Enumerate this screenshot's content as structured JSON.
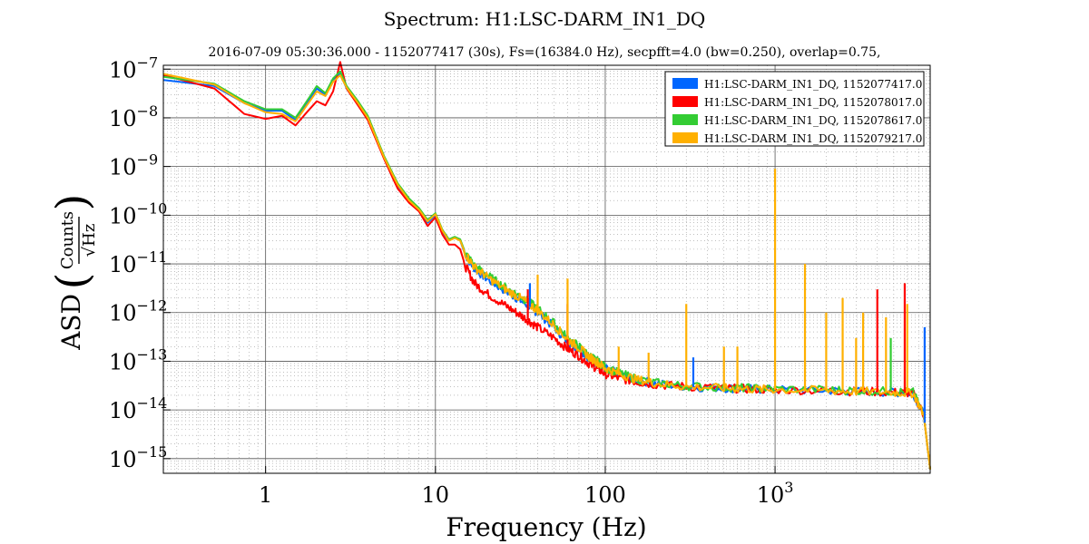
{
  "title": "Spectrum: H1:LSC-DARM_IN1_DQ",
  "subtitle": "2016-07-09 05:30:36.000 - 1152077417 (30s), Fs=(16384.0 Hz), secpfft=4.0 (bw=0.250), overlap=0.75,",
  "chart_data": {
    "type": "line",
    "title": "Spectrum: H1:LSC-DARM_IN1_DQ",
    "xlabel": "Frequency (Hz)",
    "ylabel": "ASD (Counts/√Hz)",
    "ylabel_parts": {
      "prefix": "ASD",
      "numerator": "Counts",
      "denominator": "√Hz"
    },
    "xscale": "log",
    "yscale": "log",
    "xlim": [
      0.25,
      8192
    ],
    "ylim": [
      5e-16,
      1.2e-07
    ],
    "grid": true,
    "legend_position": "top-right",
    "x_ticks": [
      {
        "value": 1,
        "base": "1",
        "exp": ""
      },
      {
        "value": 10,
        "base": "10",
        "exp": ""
      },
      {
        "value": 100,
        "base": "100",
        "exp": ""
      },
      {
        "value": 1000,
        "base": "10",
        "exp": "3"
      }
    ],
    "y_ticks": [
      {
        "value": 1e-07,
        "base": "10",
        "exp": "−7"
      },
      {
        "value": 1e-08,
        "base": "10",
        "exp": "−8"
      },
      {
        "value": 1e-09,
        "base": "10",
        "exp": "−9"
      },
      {
        "value": 1e-10,
        "base": "10",
        "exp": "−10"
      },
      {
        "value": 1e-11,
        "base": "10",
        "exp": "−11"
      },
      {
        "value": 1e-12,
        "base": "10",
        "exp": "−12"
      },
      {
        "value": 1e-13,
        "base": "10",
        "exp": "−13"
      },
      {
        "value": 1e-14,
        "base": "10",
        "exp": "−14"
      },
      {
        "value": 1e-15,
        "base": "10",
        "exp": "−15"
      }
    ],
    "series": [
      {
        "name": "H1:LSC-DARM_IN1_DQ, 1152077417.0",
        "color": "#0066ff",
        "x": [
          0.25,
          0.5,
          0.75,
          1,
          1.25,
          1.5,
          1.75,
          2,
          2.25,
          2.5,
          2.75,
          3,
          3.5,
          4,
          5,
          6,
          7,
          8,
          9,
          10,
          11,
          12,
          13,
          14,
          15,
          17,
          20,
          25,
          30,
          35,
          40,
          50,
          60,
          70,
          80,
          90,
          100,
          120,
          150,
          200,
          300,
          500,
          700,
          1000,
          2000,
          3000,
          5000,
          6500,
          7500,
          8192
        ],
        "y": [
          6e-08,
          4.5e-08,
          2e-08,
          1.4e-08,
          1.4e-08,
          9e-09,
          2e-08,
          4e-08,
          3e-08,
          6e-08,
          8e-08,
          4e-08,
          2e-08,
          1e-08,
          1.5e-09,
          4e-10,
          2e-10,
          1.3e-10,
          7e-11,
          1e-10,
          4.5e-11,
          3e-11,
          3.5e-11,
          3e-11,
          1.5e-11,
          8e-12,
          5e-12,
          3e-12,
          2e-12,
          1.4e-12,
          1e-12,
          5e-13,
          2.5e-13,
          1.8e-13,
          1.2e-13,
          9e-14,
          7e-14,
          5.5e-14,
          4.2e-14,
          3.5e-14,
          3e-14,
          2.8e-14,
          2.7e-14,
          2.6e-14,
          2.5e-14,
          2.4e-14,
          2.3e-14,
          2.2e-14,
          8e-15,
          6e-16
        ]
      },
      {
        "name": "H1:LSC-DARM_IN1_DQ, 1152078017.0",
        "color": "#ff0000",
        "x": [
          0.25,
          0.5,
          0.75,
          1,
          1.25,
          1.5,
          1.75,
          2,
          2.25,
          2.5,
          2.75,
          3,
          3.5,
          4,
          5,
          6,
          7,
          8,
          9,
          10,
          11,
          12,
          13,
          14,
          15,
          17,
          20,
          25,
          30,
          35,
          40,
          50,
          60,
          70,
          80,
          90,
          100,
          120,
          150,
          200,
          300,
          500,
          700,
          1000,
          2000,
          3000,
          5000,
          6500,
          7500,
          8192
        ],
        "y": [
          7.5e-08,
          4e-08,
          1.2e-08,
          9.5e-09,
          1.1e-08,
          7e-09,
          1.3e-08,
          2.2e-08,
          1.8e-08,
          3.5e-08,
          1.4e-07,
          4e-08,
          1.8e-08,
          9e-09,
          1.4e-09,
          3.5e-10,
          1.8e-10,
          1.2e-10,
          6e-11,
          9e-11,
          4e-11,
          2.5e-11,
          2.5e-11,
          2e-11,
          9e-12,
          4e-12,
          2.5e-12,
          1.5e-12,
          1e-12,
          7e-13,
          5e-13,
          3e-13,
          1.8e-13,
          1.3e-13,
          9e-14,
          7e-14,
          5.5e-14,
          4.5e-14,
          3.8e-14,
          3.3e-14,
          3e-14,
          2.8e-14,
          2.7e-14,
          2.6e-14,
          2.5e-14,
          2.4e-14,
          2.3e-14,
          2.2e-14,
          8e-15,
          6e-16
        ]
      },
      {
        "name": "H1:LSC-DARM_IN1_DQ, 1152078617.0",
        "color": "#33cc33",
        "x": [
          0.25,
          0.5,
          0.75,
          1,
          1.25,
          1.5,
          1.75,
          2,
          2.25,
          2.5,
          2.75,
          3,
          3.5,
          4,
          5,
          6,
          7,
          8,
          9,
          10,
          11,
          12,
          13,
          14,
          15,
          17,
          20,
          25,
          30,
          35,
          40,
          50,
          60,
          70,
          80,
          90,
          100,
          120,
          150,
          200,
          300,
          500,
          700,
          1000,
          2000,
          3000,
          5000,
          6500,
          7500,
          8192
        ],
        "y": [
          7e-08,
          5e-08,
          2.2e-08,
          1.5e-08,
          1.5e-08,
          1e-08,
          2.2e-08,
          4.5e-08,
          3.2e-08,
          6.5e-08,
          9e-08,
          4.5e-08,
          2.2e-08,
          1.1e-08,
          1.6e-09,
          4.5e-10,
          2.2e-10,
          1.4e-10,
          8e-11,
          1.1e-10,
          5e-11,
          3.2e-11,
          3.6e-11,
          3.2e-11,
          1.7e-11,
          9e-12,
          6e-12,
          3.5e-12,
          2.4e-12,
          1.7e-12,
          1.2e-12,
          6e-13,
          3e-13,
          2e-13,
          1.3e-13,
          1e-13,
          7.5e-14,
          5.8e-14,
          4.4e-14,
          3.6e-14,
          3.1e-14,
          2.9e-14,
          2.8e-14,
          2.7e-14,
          2.6e-14,
          2.5e-14,
          2.4e-14,
          2.3e-14,
          8e-15,
          6e-16
        ]
      },
      {
        "name": "H1:LSC-DARM_IN1_DQ, 1152079217.0",
        "color": "#ffb000",
        "x": [
          0.25,
          0.5,
          0.75,
          1,
          1.25,
          1.5,
          1.75,
          2,
          2.25,
          2.5,
          2.75,
          3,
          3.5,
          4,
          5,
          6,
          7,
          8,
          9,
          10,
          11,
          12,
          13,
          14,
          15,
          17,
          20,
          25,
          30,
          35,
          40,
          50,
          60,
          70,
          80,
          90,
          100,
          120,
          150,
          200,
          300,
          500,
          700,
          1000,
          2000,
          3000,
          5000,
          6500,
          7500,
          8192
        ],
        "y": [
          8e-08,
          4.8e-08,
          2e-08,
          1.3e-08,
          1.2e-08,
          8.5e-09,
          1.8e-08,
          3.5e-08,
          2.8e-08,
          5.5e-08,
          7.5e-08,
          4.2e-08,
          2e-08,
          1e-08,
          1.5e-09,
          4.2e-10,
          2e-10,
          1.3e-10,
          7.5e-11,
          1.05e-10,
          4.8e-11,
          3e-11,
          3.4e-11,
          3e-11,
          1.6e-11,
          8.5e-12,
          5.5e-12,
          3.2e-12,
          2.2e-12,
          1.6e-12,
          1.1e-12,
          5.5e-13,
          2.8e-13,
          1.9e-13,
          1.25e-13,
          9.5e-14,
          7.2e-14,
          5.6e-14,
          4.3e-14,
          3.5e-14,
          3e-14,
          2.8e-14,
          2.7e-14,
          2.6e-14,
          2.5e-14,
          2.4e-14,
          2.3e-14,
          2.2e-14,
          8e-15,
          6e-16
        ]
      }
    ],
    "peaks": [
      {
        "series": 1,
        "freq": 35,
        "value": 3e-12
      },
      {
        "series": 1,
        "freq": 60,
        "value": 1.5e-12
      },
      {
        "series": 0,
        "freq": 36,
        "value": 4e-12
      },
      {
        "series": 3,
        "freq": 40,
        "value": 6e-12
      },
      {
        "series": 3,
        "freq": 60,
        "value": 5e-12
      },
      {
        "series": 3,
        "freq": 120,
        "value": 2e-13
      },
      {
        "series": 3,
        "freq": 180,
        "value": 1.5e-13
      },
      {
        "series": 3,
        "freq": 300,
        "value": 1.5e-12
      },
      {
        "series": 0,
        "freq": 330,
        "value": 1.2e-13
      },
      {
        "series": 3,
        "freq": 500,
        "value": 2e-13
      },
      {
        "series": 3,
        "freq": 600,
        "value": 2e-13
      },
      {
        "series": 3,
        "freq": 1000,
        "value": 9e-10
      },
      {
        "series": 3,
        "freq": 1500,
        "value": 1e-11
      },
      {
        "series": 3,
        "freq": 2000,
        "value": 1e-12
      },
      {
        "series": 3,
        "freq": 2500,
        "value": 2e-12
      },
      {
        "series": 3,
        "freq": 3000,
        "value": 3e-13
      },
      {
        "series": 3,
        "freq": 3300,
        "value": 1e-12
      },
      {
        "series": 1,
        "freq": 4000,
        "value": 3e-12
      },
      {
        "series": 3,
        "freq": 4500,
        "value": 8e-13
      },
      {
        "series": 2,
        "freq": 4800,
        "value": 3e-13
      },
      {
        "series": 1,
        "freq": 5800,
        "value": 4e-12
      },
      {
        "series": 3,
        "freq": 6000,
        "value": 1.5e-12
      },
      {
        "series": 0,
        "freq": 7600,
        "value": 5e-13
      }
    ]
  }
}
